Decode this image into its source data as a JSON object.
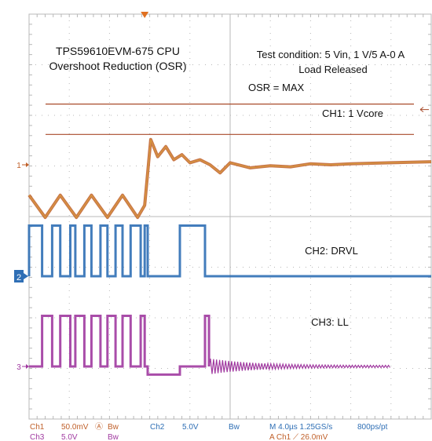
{
  "chart_data": {
    "type": "line",
    "annotations": {
      "title_line1": "TPS59610EVM-675 CPU",
      "title_line2": "Overshoot Reduction (OSR)",
      "test_line1": "Test condition: 5 Vin, 1 V/5 A-0 A",
      "test_line2": "Load Released",
      "osr": "OSR = MAX"
    },
    "grid": true,
    "divisions": {
      "x": 10,
      "y": 8
    },
    "time_per_div_us": 4.0,
    "trigger_time_us": -8.5,
    "channels": [
      {
        "id": "CH1",
        "name": "CH1: 1 Vcore",
        "marker": "1",
        "color": "#c0602a",
        "volts_per_div": 0.05,
        "unit": "V",
        "cursors_mV": [
          60,
          30
        ],
        "x_us": [
          -20,
          -18.4,
          -16.9,
          -15.3,
          -13.8,
          -12.2,
          -10.7,
          -9.2,
          -8.5,
          -7.9,
          -7.2,
          -6.4,
          -5.6,
          -4.8,
          -4,
          -3,
          -2,
          -1,
          0,
          2,
          4,
          6,
          8,
          10,
          12,
          16,
          20
        ],
        "y_mV": [
          -30,
          -52,
          -30,
          -52,
          -30,
          -52,
          -30,
          -52,
          -40,
          25,
          8,
          18,
          5,
          10,
          2,
          5,
          0,
          -8,
          2,
          -3,
          -1,
          -2,
          1,
          0,
          1,
          2,
          3
        ]
      },
      {
        "id": "CH2",
        "name": "CH2: DRVL",
        "marker": "2",
        "color": "#2f6fb5",
        "volts_per_div": 5.0,
        "unit": "V",
        "high_level_V": 5,
        "low_level_V": 0,
        "pulses_us": [
          [
            -20,
            -18.7
          ],
          [
            -17.7,
            -16.9
          ],
          [
            -15.9,
            -15.4
          ],
          [
            -14.5,
            -13.8
          ],
          [
            -12.9,
            -12.2
          ],
          [
            -11.4,
            -10.7
          ],
          [
            -9.9,
            -8.9
          ],
          [
            -8.5,
            -8.2
          ],
          [
            -5.0,
            -2.5
          ]
        ],
        "x_us": [
          -20,
          20
        ]
      },
      {
        "id": "CH3",
        "name": "CH3: LL",
        "marker": "3",
        "color": "#a03aa0",
        "volts_per_div": 5.0,
        "unit": "V",
        "high_level_V": 5,
        "low_level_V": 0,
        "pulses_us": [
          [
            -18.7,
            -17.7
          ],
          [
            -16.9,
            -15.9
          ],
          [
            -15.4,
            -14.5
          ],
          [
            -13.8,
            -12.9
          ],
          [
            -12.2,
            -11.4
          ],
          [
            -10.7,
            -9.9
          ],
          [
            -8.9,
            -8.5
          ],
          [
            -2.5,
            -2.1
          ]
        ],
        "dip_us": [
          [
            -8.2,
            -5.0
          ]
        ],
        "dip_level_V": -0.8,
        "ring_start_us": -2.1,
        "x_us": [
          -20,
          20
        ]
      }
    ]
  },
  "status_bar": {
    "row1": {
      "ch1": "Ch1",
      "ch1_scale": "50.0mV",
      "ch1_sym": "Ⓐ",
      "ch1_bw": "Bw",
      "ch2": "Ch2",
      "ch2_scale": "5.0V",
      "ch2_bw": "Bw",
      "timebase": "M 4.0µs 1.25GS/s",
      "resolution": "800ps/pt"
    },
    "row2": {
      "ch3": "Ch3",
      "ch3_scale": "5.0V",
      "ch3_bw": "Bw",
      "trigger": "A  Ch1  ⟋  26.0mV"
    }
  },
  "colors": {
    "ch1": "#c0602a",
    "ch2": "#2f6fb5",
    "ch3": "#a03aa0",
    "grid": "#b8b8b8",
    "cursor": "#a84a2a",
    "trigger": "#e07020"
  }
}
